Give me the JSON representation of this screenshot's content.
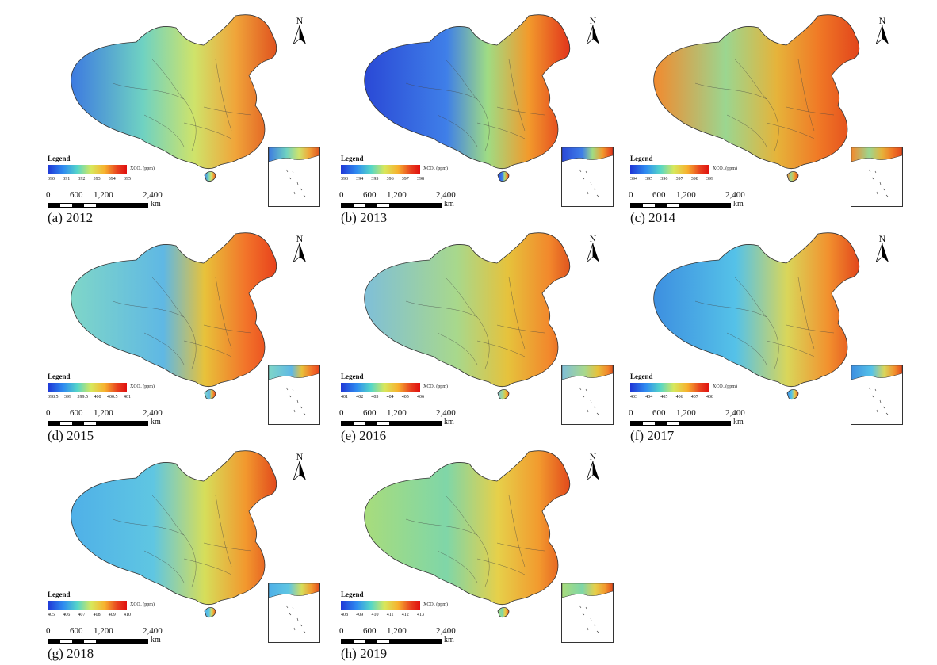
{
  "north_label": "N",
  "scale": {
    "labels": [
      "0",
      "600",
      "1,200",
      "2,400"
    ],
    "unit": "km"
  },
  "legend_title": "Legend",
  "panels": [
    {
      "caption": "(a) 2012",
      "unit": "XCO₂ (ppm)",
      "ticks": [
        "390",
        "391",
        "392",
        "393",
        "394",
        "395"
      ]
    },
    {
      "caption": "(b) 2013",
      "unit": "XCO₂ (ppm)",
      "ticks": [
        "393",
        "394",
        "395",
        "396",
        "397",
        "398"
      ]
    },
    {
      "caption": "(c) 2014",
      "unit": "XCO₂ (ppm)",
      "ticks": [
        "394",
        "395",
        "396",
        "397",
        "398",
        "399"
      ]
    },
    {
      "caption": "(d) 2015",
      "unit": "XCO₂ (ppm)",
      "ticks": [
        "398.5",
        "399",
        "399.5",
        "400",
        "400.5",
        "401"
      ]
    },
    {
      "caption": "(e) 2016",
      "unit": "XCO₂ (ppm)",
      "ticks": [
        "401",
        "402",
        "403",
        "404",
        "405",
        "406"
      ]
    },
    {
      "caption": "(f) 2017",
      "unit": "XCO₂ (ppm)",
      "ticks": [
        "403",
        "404",
        "405",
        "406",
        "407",
        "408"
      ]
    },
    {
      "caption": "(g) 2018",
      "unit": "XCO₂ (ppm)",
      "ticks": [
        "405",
        "406",
        "407",
        "408",
        "409",
        "410"
      ]
    },
    {
      "caption": "(h) 2019",
      "unit": "XCO₂ (ppm)",
      "ticks": [
        "408",
        "409",
        "410",
        "411",
        "412",
        "413"
      ]
    }
  ]
}
